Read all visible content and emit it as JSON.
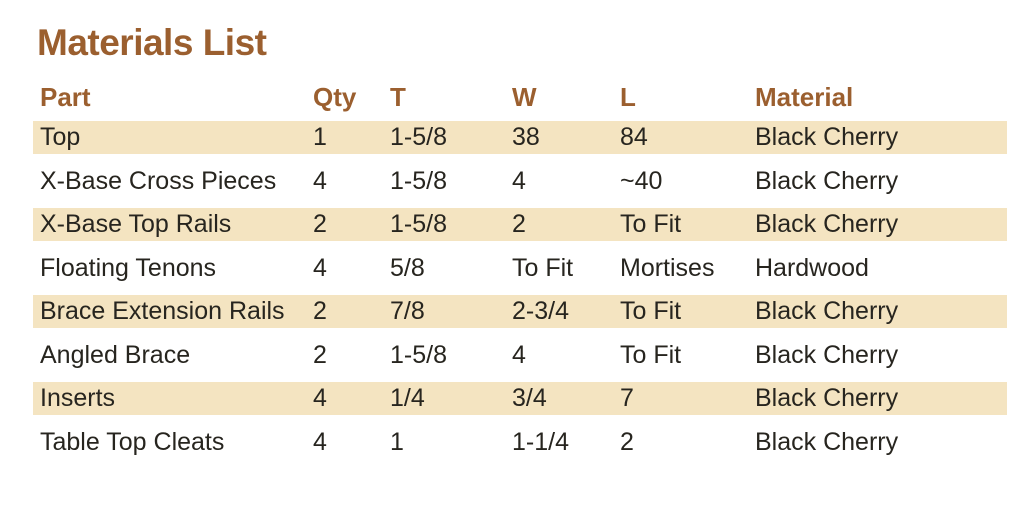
{
  "title": "Materials List",
  "colors": {
    "accent_brown": "#9b5f2f",
    "row_stripe": "#f4e4c1",
    "body_text": "#27251f",
    "page_bg": "#ffffff"
  },
  "table": {
    "columns": [
      "Part",
      "Qty",
      "T",
      "W",
      "L",
      "Material"
    ],
    "rows": [
      {
        "part": "Top",
        "qty": "1",
        "t": "1-5/8",
        "w": "38",
        "l": "84",
        "material": "Black Cherry"
      },
      {
        "part": "X-Base Cross Pieces",
        "qty": "4",
        "t": "1-5/8",
        "w": "4",
        "l": "~40",
        "material": "Black Cherry"
      },
      {
        "part": "X-Base Top Rails",
        "qty": "2",
        "t": "1-5/8",
        "w": "2",
        "l": "To Fit",
        "material": "Black Cherry"
      },
      {
        "part": "Floating Tenons",
        "qty": "4",
        "t": "5/8",
        "w": "To Fit",
        "l": "Mortises",
        "material": "Hardwood"
      },
      {
        "part": "Brace Extension Rails",
        "qty": "2",
        "t": "7/8",
        "w": "2-3/4",
        "l": "To Fit",
        "material": "Black Cherry"
      },
      {
        "part": "Angled Brace",
        "qty": "2",
        "t": "1-5/8",
        "w": "4",
        "l": "To Fit",
        "material": "Black Cherry"
      },
      {
        "part": "Inserts",
        "qty": "4",
        "t": "1/4",
        "w": "3/4",
        "l": "7",
        "material": "Black Cherry"
      },
      {
        "part": "Table Top Cleats",
        "qty": "4",
        "t": "1",
        "w": "1-1/4",
        "l": "2",
        "material": "Black Cherry"
      }
    ]
  }
}
